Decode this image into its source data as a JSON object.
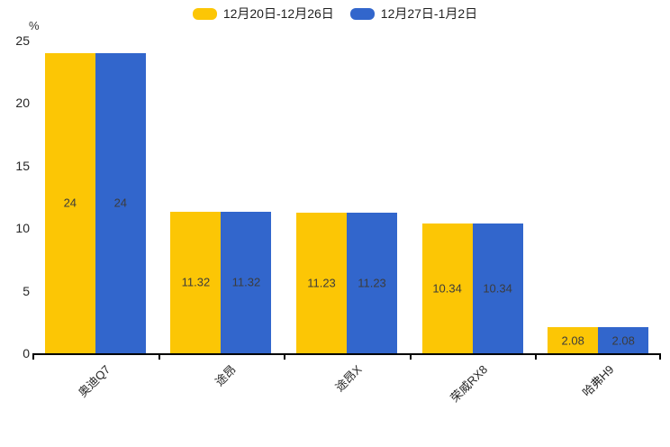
{
  "chart_data": {
    "type": "bar",
    "title": "",
    "xlabel": "",
    "ylabel": "%",
    "categories": [
      "奥迪Q7",
      "途昂",
      "途昂X",
      "荣威RX8",
      "哈弗H9"
    ],
    "series": [
      {
        "name": "12月20日-12月26日",
        "color": "#FCC605",
        "values": [
          24,
          11.32,
          11.23,
          10.34,
          2.08
        ]
      },
      {
        "name": "12月27日-1月2日",
        "color": "#3266CC",
        "values": [
          24,
          11.32,
          11.23,
          10.34,
          2.08
        ]
      }
    ],
    "ylim": [
      0,
      25
    ],
    "y_ticks": [
      0,
      5,
      10,
      15,
      20,
      25
    ],
    "grid": false,
    "legend_position": "top-center",
    "bar_value_labels_visible": true,
    "style": {
      "background": "#ffffff",
      "axis_color": "#000000",
      "tick_label_color": "#262626",
      "value_label_color": "#3c3c3c",
      "legend_text_color": "#1f1f1f"
    }
  }
}
